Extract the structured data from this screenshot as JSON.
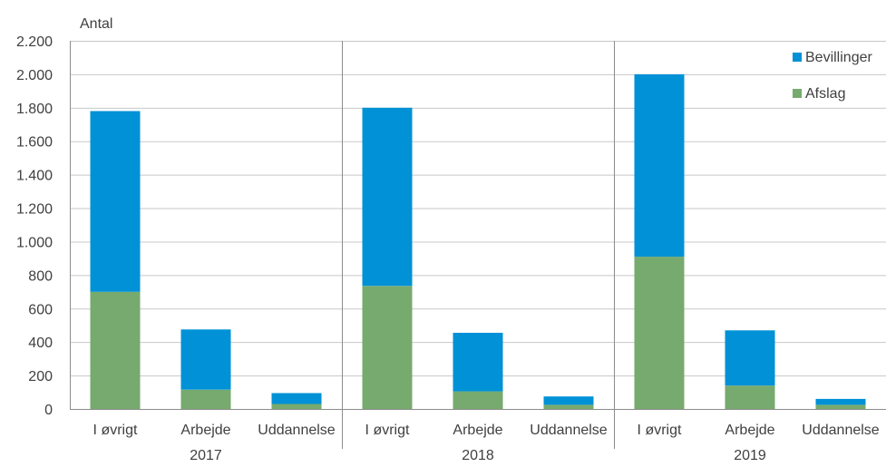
{
  "chart_data": {
    "type": "bar",
    "stacked": true,
    "ylabel": "Antal",
    "ylim": [
      0,
      2200
    ],
    "yticks": [
      0,
      200,
      400,
      600,
      800,
      1000,
      1200,
      1400,
      1600,
      1800,
      2000,
      2200
    ],
    "ytick_labels": [
      "0",
      "200",
      "400",
      "600",
      "800",
      "1.000",
      "1.200",
      "1.400",
      "1.600",
      "1.800",
      "2.000",
      "2.200"
    ],
    "groups": [
      "2017",
      "2018",
      "2019"
    ],
    "categories": [
      "I øvrigt",
      "Arbejde",
      "Uddannelse"
    ],
    "series": [
      {
        "name": "Afslag",
        "color": "#77AA6E",
        "values": [
          [
            700,
            115,
            30
          ],
          [
            735,
            105,
            25
          ],
          [
            910,
            140,
            25
          ]
        ]
      },
      {
        "name": "Bevillinger",
        "color": "#0091D6",
        "values": [
          [
            1080,
            360,
            65
          ],
          [
            1065,
            350,
            50
          ],
          [
            1090,
            330,
            35
          ]
        ]
      }
    ],
    "legend": {
      "position": "top-right",
      "order": [
        "Bevillinger",
        "Afslag"
      ]
    },
    "grid": {
      "horizontal": true,
      "group_separators": true
    }
  }
}
